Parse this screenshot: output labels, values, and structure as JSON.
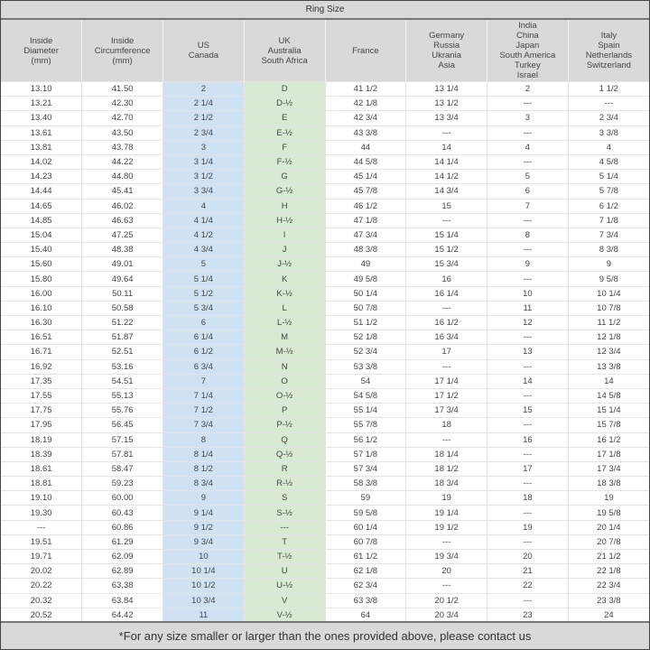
{
  "title": "Ring Size",
  "headers": [
    [
      "Inside",
      "Diameter",
      "(mm)"
    ],
    [
      "Inside",
      "Circumference",
      "(mm)"
    ],
    [
      "US",
      "Canada"
    ],
    [
      "UK",
      "Australia",
      "South Africa"
    ],
    [
      "France"
    ],
    [
      "Germany",
      "Russia",
      "Ukrania",
      "Asia"
    ],
    [
      "India",
      "China",
      "Japan",
      "South America",
      "Turkey",
      "Israel"
    ],
    [
      "Italy",
      "Spain",
      "Netherlands",
      "Switzerland"
    ]
  ],
  "colors": {
    "header": "#d9d9d9",
    "us_column": "#cfe2f3",
    "uk_column": "#d9ead3"
  },
  "rows": [
    [
      "13.10",
      "41.50",
      "2",
      "D",
      "41 1/2",
      "13 1/4",
      "2",
      "1 1/2"
    ],
    [
      "13.21",
      "42.30",
      "2 1/4",
      "D-½",
      "42 1/8",
      "13 1/2",
      "---",
      "---"
    ],
    [
      "13.40",
      "42.70",
      "2 1/2",
      "E",
      "42 3/4",
      "13 3/4",
      "3",
      "2 3/4"
    ],
    [
      "13.61",
      "43.50",
      "2 3/4",
      "E-½",
      "43 3/8",
      "---",
      "---",
      "3 3/8"
    ],
    [
      "13.81",
      "43.78",
      "3",
      "F",
      "44",
      "14",
      "4",
      "4"
    ],
    [
      "14.02",
      "44.22",
      "3 1/4",
      "F-½",
      "44 5/8",
      "14 1/4",
      "---",
      "4 5/8"
    ],
    [
      "14.23",
      "44.80",
      "3 1/2",
      "G",
      "45 1/4",
      "14 1/2",
      "5",
      "5 1/4"
    ],
    [
      "14.44",
      "45.41",
      "3 3/4",
      "G-½",
      "45 7/8",
      "14 3/4",
      "6",
      "5 7/8"
    ],
    [
      "14.65",
      "46.02",
      "4",
      "H",
      "46 1/2",
      "15",
      "7",
      "6 1/2"
    ],
    [
      "14.85",
      "46.63",
      "4 1/4",
      "H-½",
      "47 1/8",
      "---",
      "---",
      "7 1/8"
    ],
    [
      "15.04",
      "47.25",
      "4 1/2",
      "I",
      "47 3/4",
      "15 1/4",
      "8",
      "7 3/4"
    ],
    [
      "15.40",
      "48.38",
      "4 3/4",
      "J",
      "48 3/8",
      "15 1/2",
      "---",
      "8 3/8"
    ],
    [
      "15.60",
      "49.01",
      "5",
      "J-½",
      "49",
      "15 3/4",
      "9",
      "9"
    ],
    [
      "15.80",
      "49.64",
      "5 1/4",
      "K",
      "49 5/8",
      "16",
      "---",
      "9 5/8"
    ],
    [
      "16.00",
      "50.11",
      "5 1/2",
      "K-½",
      "50 1/4",
      "16 1/4",
      "10",
      "10 1/4"
    ],
    [
      "16.10",
      "50.58",
      "5 3/4",
      "L",
      "50 7/8",
      "---",
      "11",
      "10 7/8"
    ],
    [
      "16.30",
      "51.22",
      "6",
      "L-½",
      "51 1/2",
      "16 1/2",
      "12",
      "11 1/2"
    ],
    [
      "16.51",
      "51.87",
      "6 1/4",
      "M",
      "52 1/8",
      "16 3/4",
      "---",
      "12 1/8"
    ],
    [
      "16.71",
      "52.51",
      "6 1/2",
      "M-½",
      "52 3/4",
      "17",
      "13",
      "12 3/4"
    ],
    [
      "16.92",
      "53.16",
      "6 3/4",
      "N",
      "53 3/8",
      "---",
      "---",
      "13 3/8"
    ],
    [
      "17.35",
      "54.51",
      "7",
      "O",
      "54",
      "17 1/4",
      "14",
      "14"
    ],
    [
      "17.55",
      "55.13",
      "7 1/4",
      "O-½",
      "54 5/8",
      "17 1/2",
      "---",
      "14 5/8"
    ],
    [
      "17.75",
      "55.76",
      "7 1/2",
      "P",
      "55 1/4",
      "17 3/4",
      "15",
      "15 1/4"
    ],
    [
      "17.95",
      "56.45",
      "7 3/4",
      "P-½",
      "55 7/8",
      "18",
      "---",
      "15 7/8"
    ],
    [
      "18.19",
      "57.15",
      "8",
      "Q",
      "56 1/2",
      "---",
      "16",
      "16 1/2"
    ],
    [
      "18.39",
      "57.81",
      "8 1/4",
      "Q-½",
      "57 1/8",
      "18 1/4",
      "---",
      "17 1/8"
    ],
    [
      "18.61",
      "58.47",
      "8 1/2",
      "R",
      "57 3/4",
      "18 1/2",
      "17",
      "17 3/4"
    ],
    [
      "18.81",
      "59.23",
      "8 3/4",
      "R-½",
      "58 3/8",
      "18 3/4",
      "---",
      "18 3/8"
    ],
    [
      "19.10",
      "60.00",
      "9",
      "S",
      "59",
      "19",
      "18",
      "19"
    ],
    [
      "19.30",
      "60.43",
      "9 1/4",
      "S-½",
      "59 5/8",
      "19 1/4",
      "---",
      "19 5/8"
    ],
    [
      "---",
      "60.86",
      "9 1/2",
      "---",
      "60 1/4",
      "19 1/2",
      "19",
      "20 1/4"
    ],
    [
      "19.51",
      "61.29",
      "9 3/4",
      "T",
      "60 7/8",
      "---",
      "---",
      "20 7/8"
    ],
    [
      "19.71",
      "62.09",
      "10",
      "T-½",
      "61 1/2",
      "19 3/4",
      "20",
      "21 1/2"
    ],
    [
      "20.02",
      "62.89",
      "10 1/4",
      "U",
      "62 1/8",
      "20",
      "21",
      "22 1/8"
    ],
    [
      "20.22",
      "63,38",
      "10 1/2",
      "U-½",
      "62 3/4",
      "---",
      "22",
      "22 3/4"
    ],
    [
      "20.32",
      "63.84",
      "10 3/4",
      "V",
      "63 3/8",
      "20 1/2",
      "---",
      "23 3/8"
    ],
    [
      "20.52",
      "64.42",
      "11",
      "V-½",
      "64",
      "20 3/4",
      "23",
      "24"
    ]
  ],
  "footer": "*For any size smaller or larger than the ones provided above, please contact us"
}
